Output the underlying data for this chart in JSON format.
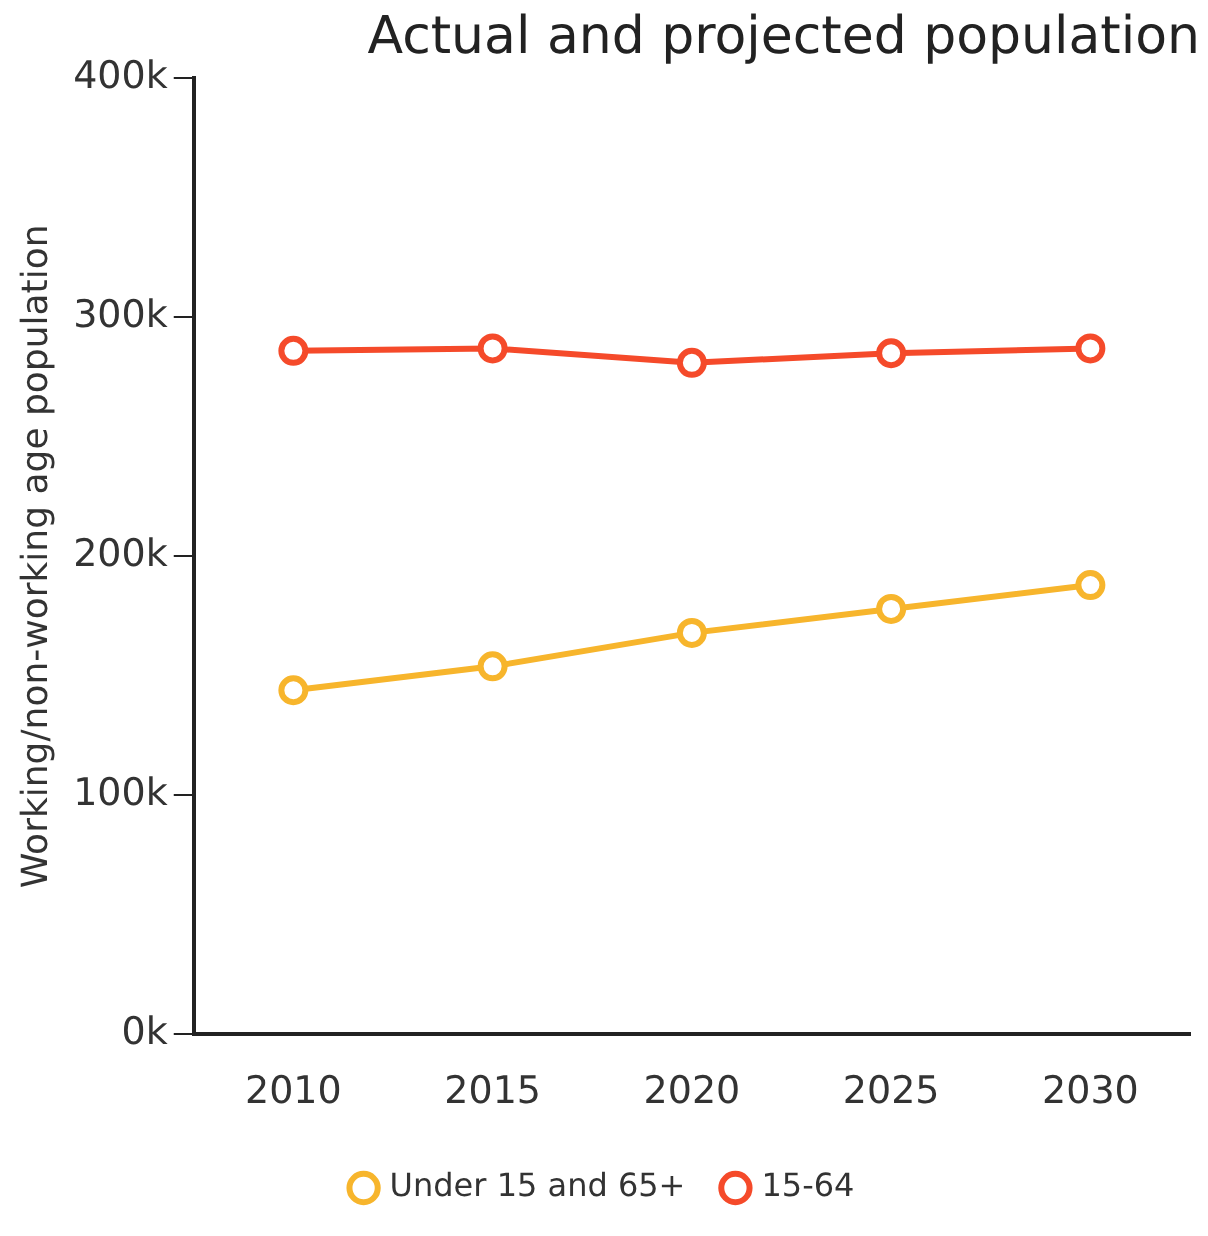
{
  "chart_data": {
    "type": "line",
    "title": "Actual and projected population",
    "ylabel": "Working/non-working age population",
    "categories": [
      "2010",
      "2015",
      "2020",
      "2025",
      "2030"
    ],
    "series": [
      {
        "name": "Under 15 and 65+",
        "color": "#f7b52c",
        "values": [
          144000,
          154000,
          168000,
          178000,
          188000
        ]
      },
      {
        "name": "15-64",
        "color": "#f54a2a",
        "values": [
          286000,
          287000,
          281000,
          285000,
          287000
        ]
      }
    ],
    "ylim": [
      0,
      400000
    ],
    "yticks": [
      {
        "value": 0,
        "label": "0k"
      },
      {
        "value": 100000,
        "label": "100k"
      },
      {
        "value": 200000,
        "label": "200k"
      },
      {
        "value": 300000,
        "label": "300k"
      },
      {
        "value": 400000,
        "label": "400k"
      }
    ],
    "grid": false,
    "legend": "bottom",
    "marker": "circle",
    "line_style": "solid"
  }
}
